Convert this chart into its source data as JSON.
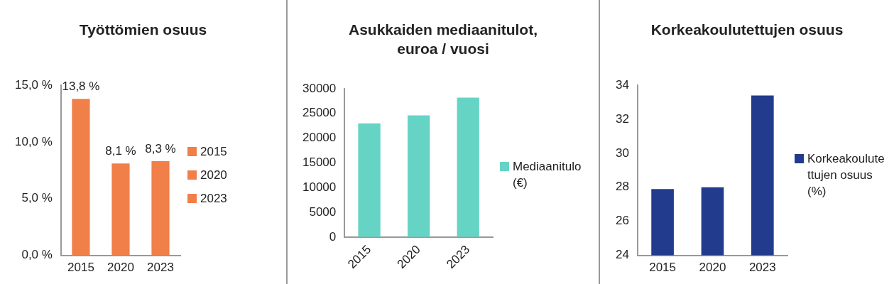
{
  "chart_data": [
    {
      "type": "bar",
      "title": "Työttömien osuus",
      "categories": [
        "2015",
        "2020",
        "2023"
      ],
      "series": [
        {
          "name": "2015",
          "color": "#f07f4a",
          "values": [
            13.8,
            null,
            null
          ],
          "value_labels": [
            "13,8 %",
            null,
            null
          ]
        },
        {
          "name": "2020",
          "color": "#f07f4a",
          "values": [
            null,
            8.1,
            null
          ],
          "value_labels": [
            null,
            "8,1 %",
            null
          ]
        },
        {
          "name": "2023",
          "color": "#f07f4a",
          "values": [
            null,
            null,
            8.3
          ],
          "value_labels": [
            null,
            null,
            "8,3 %"
          ]
        }
      ],
      "ylim": [
        0,
        15
      ],
      "yticks": [
        {
          "value": 0,
          "label": "0,0 %"
        },
        {
          "value": 5,
          "label": "5,0 %"
        },
        {
          "value": 10,
          "label": "10,0 %"
        },
        {
          "value": 15,
          "label": "15,0 %"
        }
      ],
      "legend": "right",
      "grid": false
    },
    {
      "type": "bar",
      "title": "Asukkaiden mediaanitulot, euroa / vuosi",
      "categories": [
        "2015",
        "2020",
        "2023"
      ],
      "series": [
        {
          "name": "Mediaanitulo (€)",
          "color": "#66d4c5",
          "values": [
            23000,
            24600,
            28200
          ]
        }
      ],
      "ylim": [
        0,
        30000
      ],
      "yticks": [
        0,
        5000,
        10000,
        15000,
        20000,
        25000,
        30000
      ],
      "legend": "right",
      "grid": false
    },
    {
      "type": "bar",
      "title": "Korkeakoulutettujen osuus",
      "categories": [
        "2015",
        "2020",
        "2023"
      ],
      "series": [
        {
          "name": "Korkeakoulutettujen osuus (%)",
          "color": "#233b8c",
          "values": [
            27.9,
            28.0,
            33.4
          ]
        }
      ],
      "ylim": [
        24,
        34
      ],
      "yticks": [
        24,
        26,
        28,
        30,
        32,
        34
      ],
      "legend": "right",
      "grid": false
    }
  ]
}
